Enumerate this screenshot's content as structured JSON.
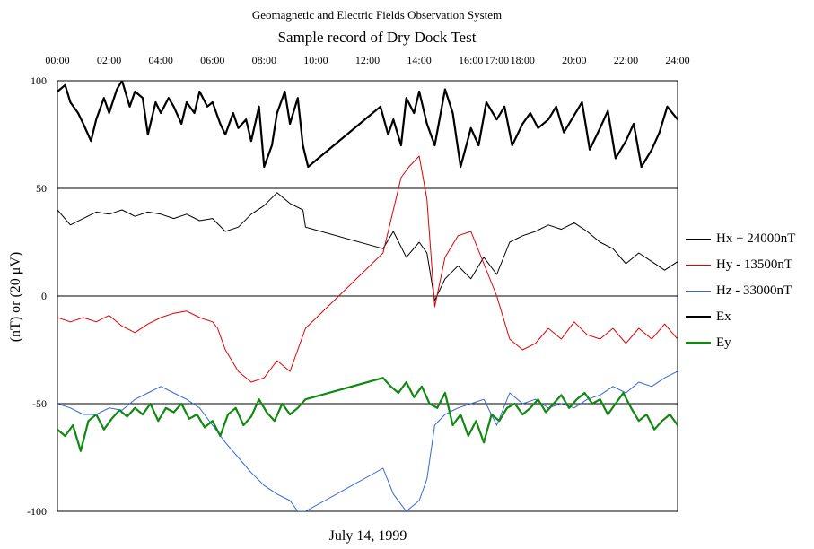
{
  "chart_data": {
    "type": "line",
    "suptitle": "Geomagnetic and Electric Fields Observation System",
    "title": "Sample record of Dry Dock Test",
    "xlabel": "July 14, 1999",
    "ylabel": "(nT) or (20 μV)",
    "xlim": [
      0,
      24
    ],
    "ylim": [
      -100,
      100
    ],
    "x_ticks": [
      "00:00",
      "02:00",
      "04:00",
      "06:00",
      "08:00",
      "10:00",
      "12:00",
      "14:00",
      "16:00",
      "17:00",
      "18:00",
      "20:00",
      "22:00",
      "24:00"
    ],
    "x_tick_hours": [
      0,
      2,
      4,
      6,
      8,
      10,
      12,
      14,
      16,
      17,
      18,
      20,
      22,
      24
    ],
    "y_ticks": [
      100,
      50,
      0,
      -50,
      -100
    ],
    "y_tick_labels": [
      "100",
      "50",
      "0",
      "-50",
      "-100"
    ],
    "grid": "horizontal",
    "legend_position": "right",
    "series": [
      {
        "name": "Hx + 24000nT",
        "color": "#000000",
        "width": 1,
        "x": [
          0,
          0.5,
          1,
          1.5,
          2,
          2.5,
          3,
          3.5,
          4,
          4.5,
          5,
          5.5,
          6,
          6.5,
          7,
          7.5,
          8,
          8.5,
          9,
          9.5,
          9.6,
          12.6,
          13,
          13.5,
          14,
          14.3,
          14.6,
          15,
          15.5,
          16,
          16.5,
          17,
          17.5,
          18,
          18.5,
          19,
          19.5,
          20,
          20.5,
          21,
          21.5,
          22,
          22.5,
          23,
          23.5,
          24
        ],
        "y": [
          40,
          33,
          36,
          39,
          38,
          40,
          37,
          39,
          38,
          36,
          38,
          35,
          36,
          30,
          32,
          38,
          42,
          48,
          43,
          40,
          32,
          22,
          30,
          18,
          25,
          20,
          -2,
          8,
          14,
          8,
          18,
          10,
          25,
          28,
          30,
          33,
          31,
          34,
          30,
          25,
          22,
          15,
          20,
          16,
          12,
          16
        ]
      },
      {
        "name": "Hy - 13500nT",
        "color": "#e00000",
        "width": 1,
        "x": [
          0,
          0.5,
          1,
          1.5,
          2,
          2.5,
          3,
          3.5,
          4,
          4.5,
          5,
          5.5,
          6,
          6.2,
          6.5,
          7,
          7.5,
          8,
          8.5,
          9,
          9.3,
          9.6,
          12.6,
          13,
          13.3,
          13.6,
          14,
          14.3,
          14.6,
          15,
          15.5,
          16,
          16.5,
          17,
          17.5,
          18,
          18.5,
          19,
          19.5,
          20,
          20.5,
          21,
          21.5,
          22,
          22.5,
          23,
          23.5,
          24
        ],
        "y": [
          -10,
          -12,
          -10,
          -12,
          -9,
          -14,
          -17,
          -13,
          -10,
          -8,
          -7,
          -10,
          -12,
          -15,
          -25,
          -35,
          -40,
          -38,
          -30,
          -35,
          -25,
          -15,
          20,
          40,
          55,
          60,
          65,
          45,
          -5,
          18,
          28,
          30,
          15,
          0,
          -20,
          -25,
          -22,
          -15,
          -20,
          -12,
          -18,
          -20,
          -15,
          -22,
          -15,
          -20,
          -13,
          -20
        ]
      },
      {
        "name": "Hz - 33000nT",
        "color": "#3366dd",
        "width": 1,
        "x": [
          0,
          0.5,
          1,
          1.5,
          2,
          2.5,
          3,
          3.5,
          4,
          4.5,
          5,
          5.5,
          6,
          6.5,
          7,
          7.5,
          8,
          8.5,
          9,
          9.3,
          9.6,
          12.6,
          13,
          13.5,
          14,
          14.3,
          14.6,
          15,
          15.5,
          16,
          16.5,
          17,
          17.5,
          18,
          18.5,
          19,
          19.5,
          20,
          20.5,
          21,
          21.5,
          22,
          22.5,
          23,
          23.5,
          24
        ],
        "y": [
          -50,
          -52,
          -55,
          -55,
          -52,
          -53,
          -48,
          -45,
          -42,
          -45,
          -48,
          -52,
          -60,
          -68,
          -75,
          -82,
          -88,
          -92,
          -95,
          -100,
          -100,
          -80,
          -92,
          -100,
          -95,
          -85,
          -60,
          -55,
          -52,
          -50,
          -48,
          -60,
          -45,
          -50,
          -48,
          -52,
          -50,
          -52,
          -48,
          -46,
          -42,
          -45,
          -40,
          -42,
          -38,
          -35
        ]
      },
      {
        "name": "Ex",
        "color": "#000000",
        "width": 2.2,
        "x": [
          0,
          0.3,
          0.5,
          0.8,
          1,
          1.3,
          1.5,
          1.8,
          2,
          2.3,
          2.5,
          2.8,
          3,
          3.3,
          3.5,
          3.8,
          4,
          4.3,
          4.5,
          4.8,
          5,
          5.3,
          5.5,
          5.8,
          6,
          6.3,
          6.5,
          6.8,
          7,
          7.3,
          7.5,
          7.8,
          8,
          8.3,
          8.5,
          8.8,
          9,
          9.3,
          9.5,
          9.7,
          12.5,
          12.8,
          13,
          13.3,
          13.5,
          13.8,
          14,
          14.3,
          14.6,
          15,
          15.3,
          15.6,
          16,
          16.3,
          16.6,
          17,
          17.3,
          17.6,
          18,
          18.3,
          18.6,
          19,
          19.3,
          19.6,
          20,
          20.3,
          20.6,
          21,
          21.3,
          21.6,
          22,
          22.3,
          22.6,
          23,
          23.3,
          23.6,
          24
        ],
        "y": [
          95,
          98,
          90,
          85,
          80,
          72,
          82,
          92,
          85,
          96,
          100,
          88,
          95,
          92,
          75,
          90,
          85,
          92,
          88,
          80,
          90,
          85,
          95,
          88,
          90,
          80,
          75,
          85,
          78,
          82,
          72,
          88,
          60,
          70,
          85,
          95,
          80,
          92,
          70,
          60,
          88,
          75,
          82,
          70,
          92,
          85,
          95,
          80,
          70,
          96,
          85,
          60,
          78,
          70,
          90,
          82,
          88,
          70,
          80,
          85,
          78,
          82,
          88,
          76,
          84,
          90,
          68,
          78,
          86,
          64,
          72,
          80,
          60,
          68,
          76,
          88,
          82
        ]
      },
      {
        "name": "Ey",
        "color": "#118811",
        "width": 2.2,
        "x": [
          0,
          0.3,
          0.6,
          0.9,
          1.2,
          1.5,
          1.8,
          2.1,
          2.4,
          2.7,
          3,
          3.3,
          3.6,
          3.9,
          4.2,
          4.5,
          4.8,
          5.1,
          5.4,
          5.7,
          6,
          6.3,
          6.6,
          6.9,
          7.2,
          7.5,
          7.8,
          8.1,
          8.4,
          8.7,
          9,
          9.3,
          9.6,
          12.6,
          12.9,
          13.2,
          13.5,
          13.8,
          14.1,
          14.4,
          14.7,
          15,
          15.3,
          15.6,
          15.9,
          16.2,
          16.5,
          16.8,
          17.1,
          17.4,
          17.7,
          18,
          18.3,
          18.6,
          18.9,
          19.2,
          19.5,
          19.8,
          20.1,
          20.4,
          20.7,
          21,
          21.3,
          21.6,
          21.9,
          22.2,
          22.5,
          22.8,
          23.1,
          23.4,
          23.7,
          24
        ],
        "y": [
          -62,
          -65,
          -60,
          -72,
          -58,
          -55,
          -62,
          -57,
          -53,
          -56,
          -52,
          -55,
          -50,
          -58,
          -52,
          -54,
          -50,
          -57,
          -55,
          -61,
          -58,
          -65,
          -55,
          -52,
          -60,
          -56,
          -48,
          -54,
          -58,
          -50,
          -55,
          -52,
          -48,
          -38,
          -42,
          -45,
          -40,
          -47,
          -42,
          -50,
          -52,
          -45,
          -60,
          -55,
          -65,
          -58,
          -68,
          -55,
          -58,
          -52,
          -50,
          -55,
          -52,
          -48,
          -54,
          -50,
          -46,
          -52,
          -48,
          -45,
          -50,
          -48,
          -55,
          -50,
          -45,
          -52,
          -58,
          -55,
          -62,
          -58,
          -55,
          -60
        ]
      }
    ]
  }
}
